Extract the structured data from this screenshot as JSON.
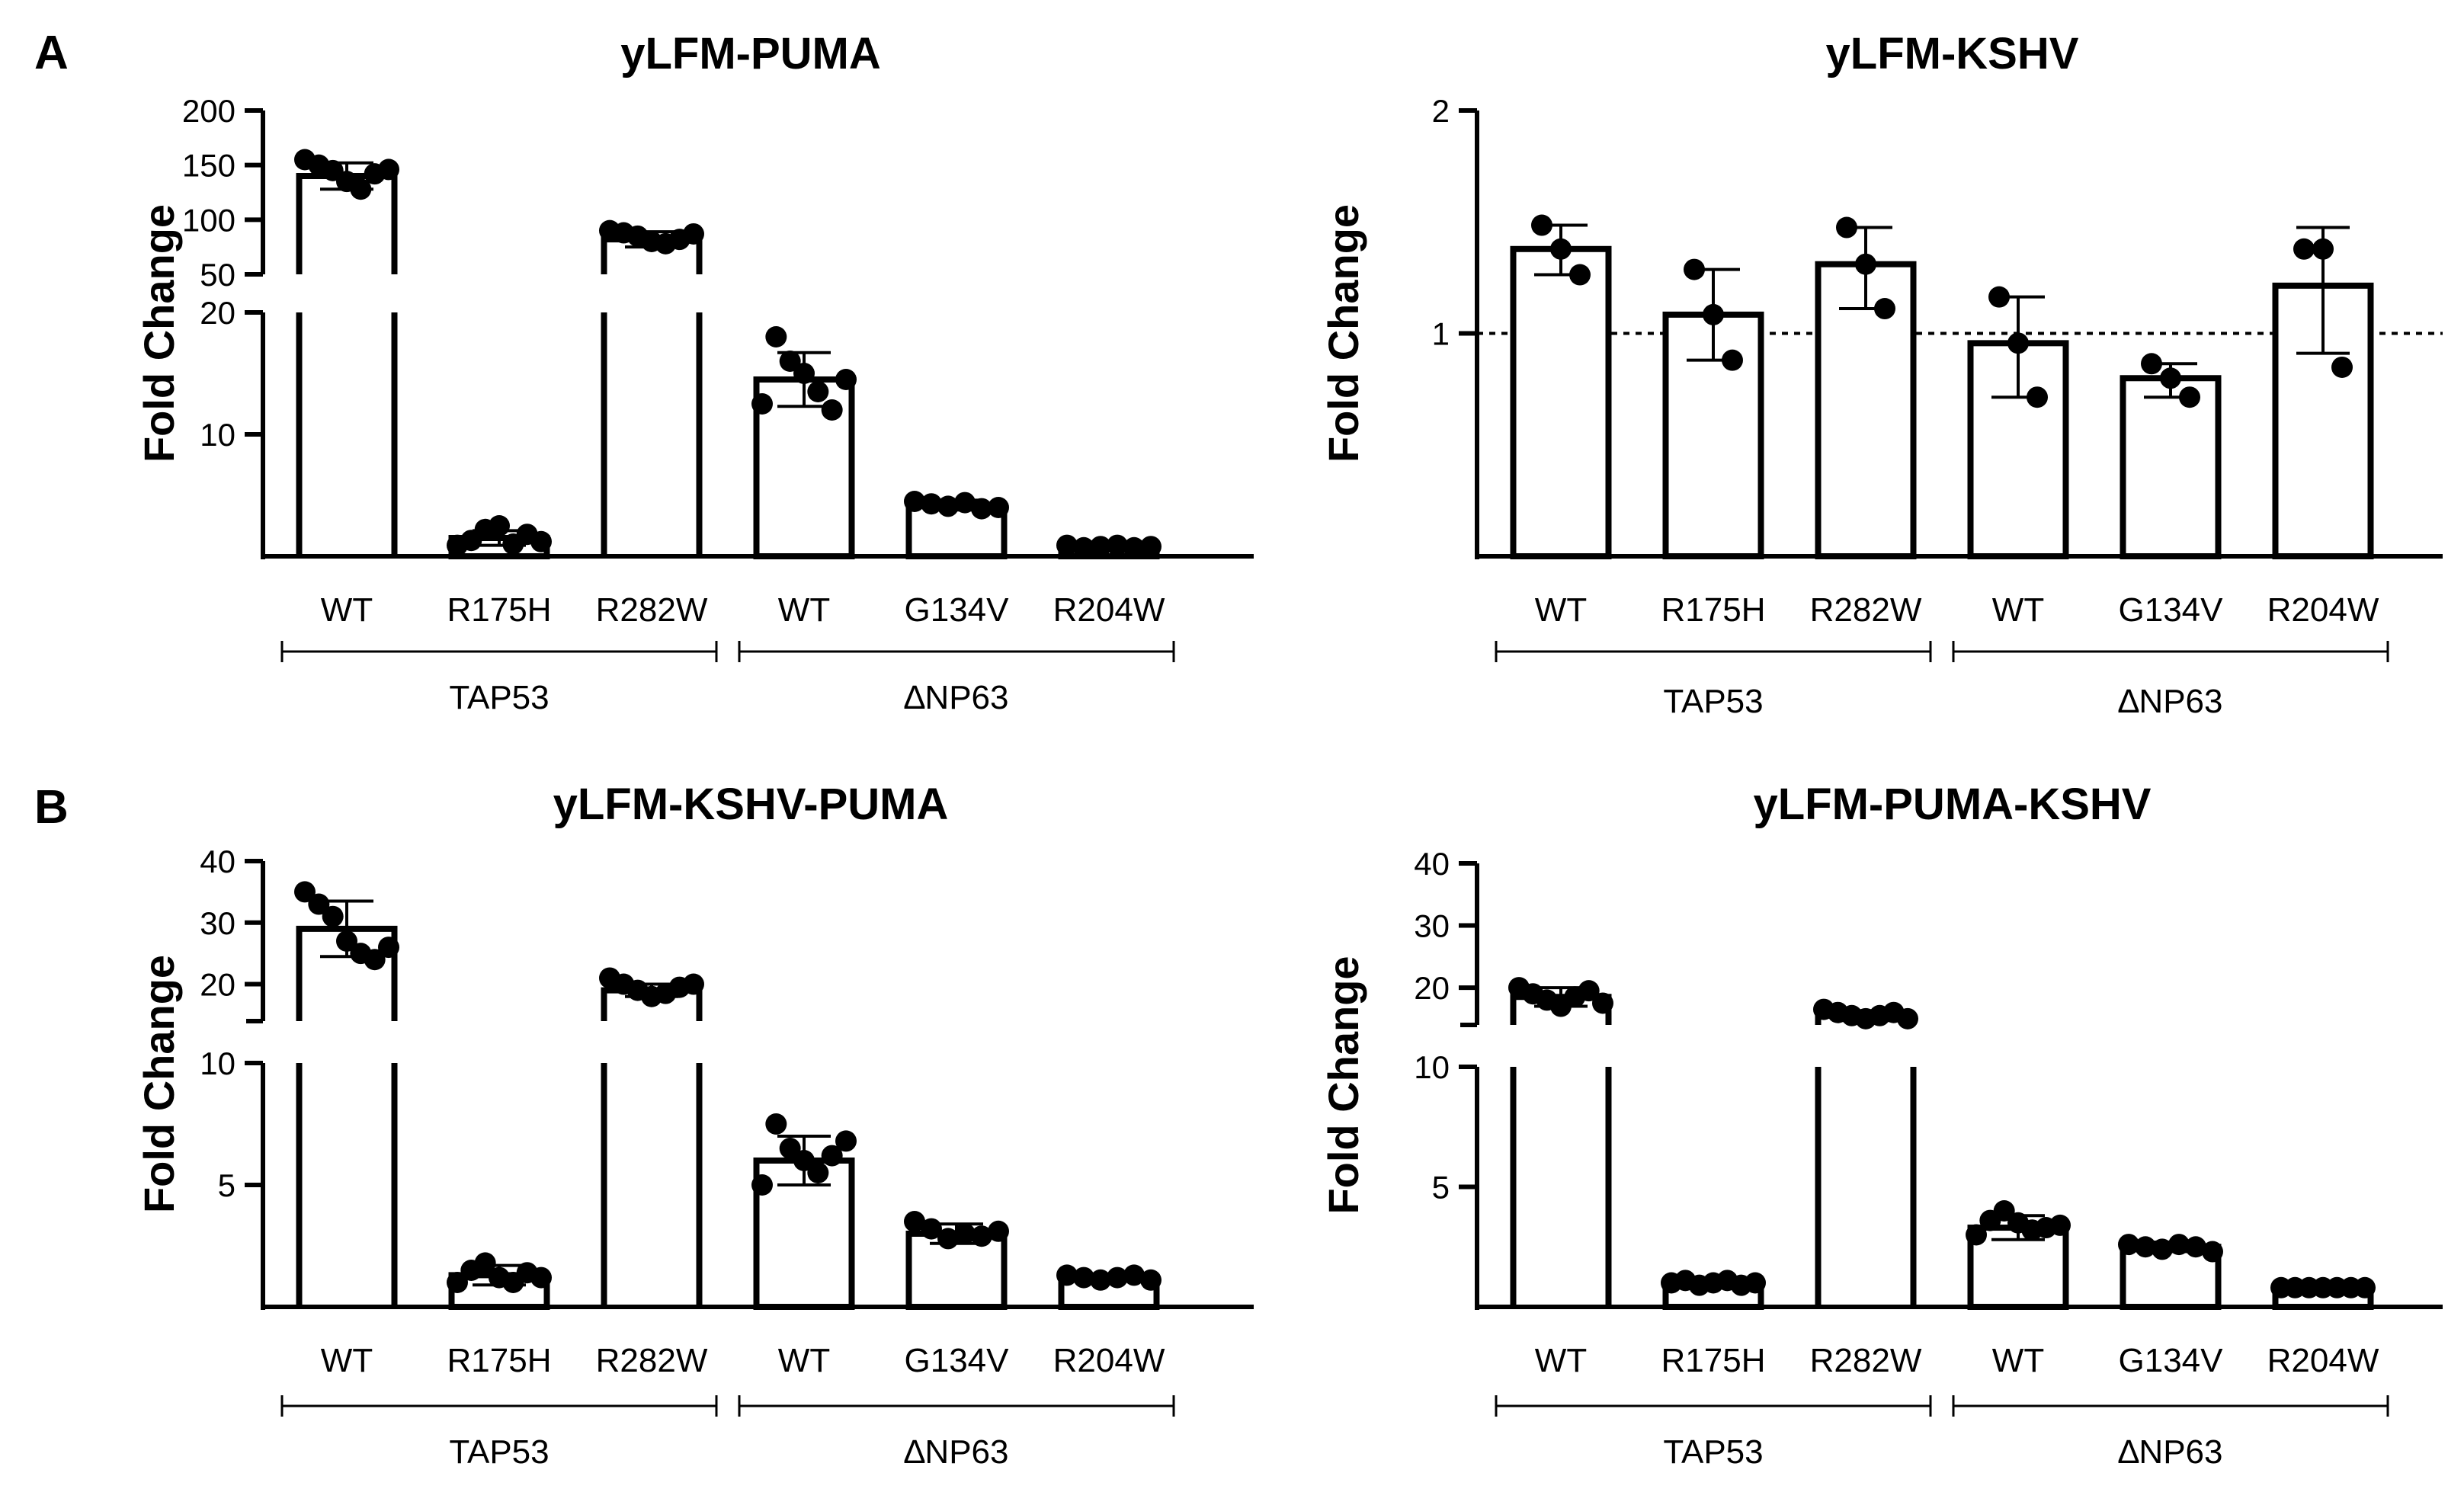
{
  "panels": [
    {
      "letter": "A"
    },
    {
      "letter": "B"
    }
  ],
  "chart_data": [
    {
      "type": "bar",
      "panel": "A",
      "title": "yLFM-PUMA",
      "ylabel": "Fold Change",
      "xlabel": "",
      "categories": [
        "WT",
        "R175H",
        "R282W",
        "WT",
        "G134V",
        "R204W"
      ],
      "groups": [
        {
          "label": "TAP53",
          "categories": [
            0,
            1,
            2
          ]
        },
        {
          "label": "∆NP63",
          "categories": [
            3,
            4,
            5
          ]
        }
      ],
      "values": [
        140,
        1.5,
        82,
        14.5,
        4.2,
        0.8
      ],
      "errors": [
        12,
        0.6,
        7,
        2.2,
        0.4,
        0.2
      ],
      "points": [
        [
          155,
          150,
          145,
          135,
          128,
          142,
          146
        ],
        [
          0.9,
          1.3,
          2.2,
          2.5,
          1.0,
          1.8,
          1.2
        ],
        [
          90,
          88,
          85,
          80,
          78,
          82,
          87
        ],
        [
          12.5,
          18.0,
          16.0,
          15.0,
          13.5,
          12.0,
          14.5
        ],
        [
          4.5,
          4.3,
          4.1,
          4.4,
          3.9,
          4.0
        ],
        [
          0.9,
          0.7,
          0.8,
          0.9,
          0.7,
          0.8
        ]
      ],
      "y_axis_broken": true,
      "y_segments": [
        {
          "range": [
            0,
            20
          ],
          "ticks": [
            10,
            20
          ]
        },
        {
          "range": [
            50,
            200
          ],
          "ticks": [
            50,
            100,
            150,
            200
          ]
        }
      ]
    },
    {
      "type": "bar",
      "panel": "A",
      "title": "yLFM-KSHV",
      "ylabel": "Fold Change",
      "xlabel": "",
      "categories": [
        "WT",
        "R175H",
        "R282W",
        "WT",
        "G134V",
        "R204W"
      ],
      "groups": [
        {
          "label": "TAP53",
          "categories": [
            0,
            1,
            2
          ]
        },
        {
          "label": "∆NP63",
          "categories": [
            3,
            4,
            5
          ]
        }
      ],
      "y_scale": "log2",
      "reference_line": 1,
      "values": [
        1.3,
        1.06,
        1.24,
        0.97,
        0.87,
        1.16
      ],
      "errors_low": [
        1.2,
        0.92,
        1.08,
        0.82,
        0.82,
        0.94
      ],
      "errors_high": [
        1.4,
        1.22,
        1.39,
        1.12,
        0.91,
        1.39
      ],
      "points": [
        [
          1.4,
          1.3,
          1.2
        ],
        [
          1.22,
          1.06,
          0.92
        ],
        [
          1.39,
          1.24,
          1.08
        ],
        [
          1.12,
          0.97,
          0.82
        ],
        [
          0.91,
          0.87,
          0.82
        ],
        [
          1.3,
          1.3,
          0.9
        ]
      ],
      "ylim": [
        0.5,
        2
      ],
      "yticks": [
        1,
        2
      ]
    },
    {
      "type": "bar",
      "panel": "B",
      "title": "yLFM-KSHV-PUMA",
      "ylabel": "Fold Change",
      "xlabel": "",
      "categories": [
        "WT",
        "R175H",
        "R282W",
        "WT",
        "G134V",
        "R204W"
      ],
      "groups": [
        {
          "label": "TAP53",
          "categories": [
            0,
            1,
            2
          ]
        },
        {
          "label": "∆NP63",
          "categories": [
            3,
            4,
            5
          ]
        }
      ],
      "values": [
        29,
        1.3,
        19,
        6.0,
        3.0,
        1.2
      ],
      "errors": [
        4.5,
        0.4,
        1.0,
        1.0,
        0.4,
        0.1
      ],
      "points": [
        [
          35,
          33,
          31,
          27,
          25,
          24,
          26
        ],
        [
          1.0,
          1.5,
          1.8,
          1.2,
          1.0,
          1.4,
          1.2
        ],
        [
          21,
          20,
          19,
          18,
          18.5,
          19.5,
          20
        ],
        [
          5.0,
          7.5,
          6.5,
          6.0,
          5.5,
          6.2,
          6.8
        ],
        [
          3.5,
          3.2,
          2.8,
          3.0,
          2.9,
          3.1
        ],
        [
          1.3,
          1.2,
          1.1,
          1.2,
          1.3,
          1.1
        ]
      ],
      "y_axis_broken": true,
      "y_segments": [
        {
          "range": [
            0,
            10
          ],
          "ticks": [
            5,
            10
          ]
        },
        {
          "range": [
            14,
            40
          ],
          "ticks": [
            20,
            30,
            40
          ]
        }
      ]
    },
    {
      "type": "bar",
      "panel": "B",
      "title": "yLFM-PUMA-KSHV",
      "ylabel": "Fold Change",
      "xlabel": "",
      "categories": [
        "WT",
        "R175H",
        "R282W",
        "WT",
        "G134V",
        "R204W"
      ],
      "groups": [
        {
          "label": "TAP53",
          "categories": [
            0,
            1,
            2
          ]
        },
        {
          "label": "∆NP63",
          "categories": [
            3,
            4,
            5
          ]
        }
      ],
      "values": [
        18.5,
        1.0,
        15.5,
        3.3,
        2.5,
        0.8
      ],
      "errors": [
        1.5,
        0.1,
        0.8,
        0.5,
        0.2,
        0.1
      ],
      "points": [
        [
          20,
          19,
          18,
          17,
          18.5,
          19.5,
          17.5
        ],
        [
          1.0,
          1.1,
          0.9,
          1.0,
          1.1,
          0.9,
          1.0
        ],
        [
          16.5,
          16,
          15.5,
          15,
          15.5,
          16,
          15
        ],
        [
          3.0,
          3.6,
          4.0,
          3.5,
          3.2,
          3.3,
          3.4
        ],
        [
          2.6,
          2.5,
          2.4,
          2.6,
          2.5,
          2.3
        ],
        [
          0.8,
          0.8,
          0.8,
          0.8,
          0.8,
          0.8,
          0.8
        ]
      ],
      "y_axis_broken": true,
      "y_segments": [
        {
          "range": [
            0,
            10
          ],
          "ticks": [
            5,
            10
          ]
        },
        {
          "range": [
            14,
            40
          ],
          "ticks": [
            20,
            30,
            40
          ]
        }
      ]
    }
  ]
}
